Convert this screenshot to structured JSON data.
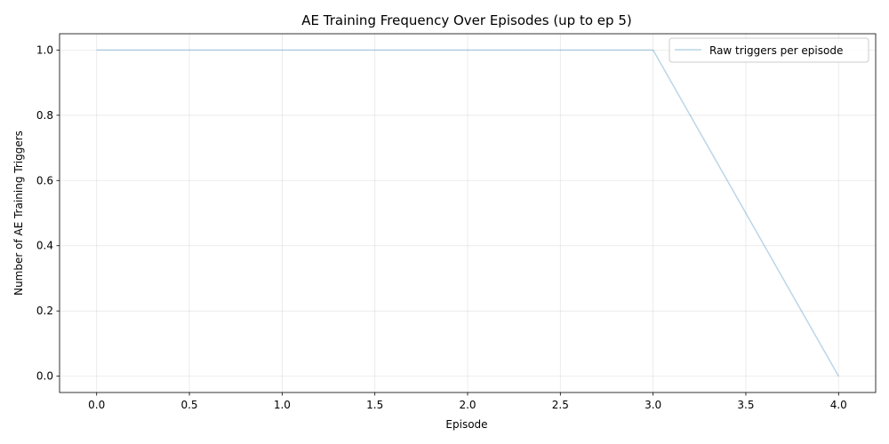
{
  "chart_data": {
    "type": "line",
    "title": "AE Training Frequency Over Episodes (up to ep 5)",
    "xlabel": "Episode",
    "ylabel": "Number of AE Training Triggers",
    "xlim": [
      -0.2,
      4.2
    ],
    "ylim": [
      -0.05,
      1.05
    ],
    "xticks": [
      0.0,
      0.5,
      1.0,
      1.5,
      2.0,
      2.5,
      3.0,
      3.5,
      4.0
    ],
    "xtick_labels": [
      "0.0",
      "0.5",
      "1.0",
      "1.5",
      "2.0",
      "2.5",
      "3.0",
      "3.5",
      "4.0"
    ],
    "yticks": [
      0.0,
      0.2,
      0.4,
      0.6,
      0.8,
      1.0
    ],
    "ytick_labels": [
      "0.0",
      "0.2",
      "0.4",
      "0.6",
      "0.8",
      "1.0"
    ],
    "grid": true,
    "legend_position": "upper right",
    "series": [
      {
        "name": "Raw triggers per episode",
        "color": "#1f77b4",
        "alpha": 0.3,
        "x": [
          0,
          1,
          2,
          3,
          4
        ],
        "y": [
          1,
          1,
          1,
          1,
          0
        ]
      }
    ]
  }
}
